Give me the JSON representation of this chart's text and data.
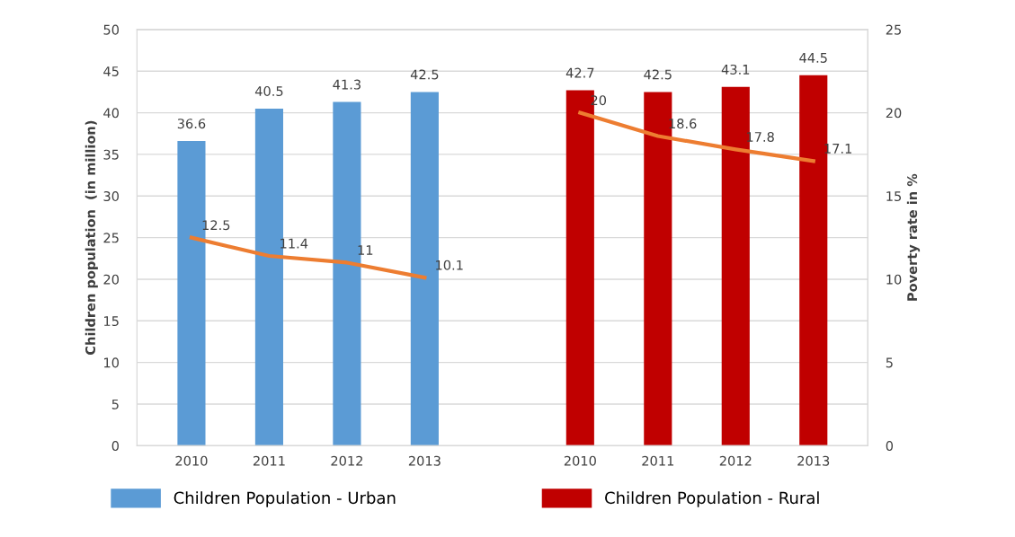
{
  "chart_data": {
    "type": "bar",
    "categories": [
      "2010",
      "2011",
      "2012",
      "2013",
      null,
      "2010",
      "2011",
      "2012",
      "2013"
    ],
    "series": [
      {
        "name": "Children Population - Urban",
        "color": "#5b9bd5",
        "values": [
          36.6,
          40.5,
          41.3,
          42.5,
          null,
          null,
          null,
          null,
          null
        ]
      },
      {
        "name": "Children Population - Rural",
        "color": "#c00000",
        "values": [
          null,
          null,
          null,
          null,
          null,
          42.7,
          42.5,
          43.1,
          44.5
        ]
      },
      {
        "type": "line",
        "axis": "y2",
        "color": "#ed7d31",
        "values": [
          12.5,
          11.4,
          11,
          10.1,
          null,
          20,
          18.6,
          17.8,
          17.1
        ]
      }
    ],
    "ylabel": "Children population  (in million)",
    "y2label": "Poverty rate in %",
    "ylim": [
      0,
      50
    ],
    "yticks": [
      0,
      5,
      10,
      15,
      20,
      25,
      30,
      35,
      40,
      45,
      50
    ],
    "y2lim": [
      0,
      25
    ],
    "y2ticks": [
      0,
      5,
      10,
      15,
      20,
      25
    ],
    "data_labels": true,
    "grid": "y",
    "legend": "bottom",
    "marker": "none",
    "line_style": "solid"
  }
}
